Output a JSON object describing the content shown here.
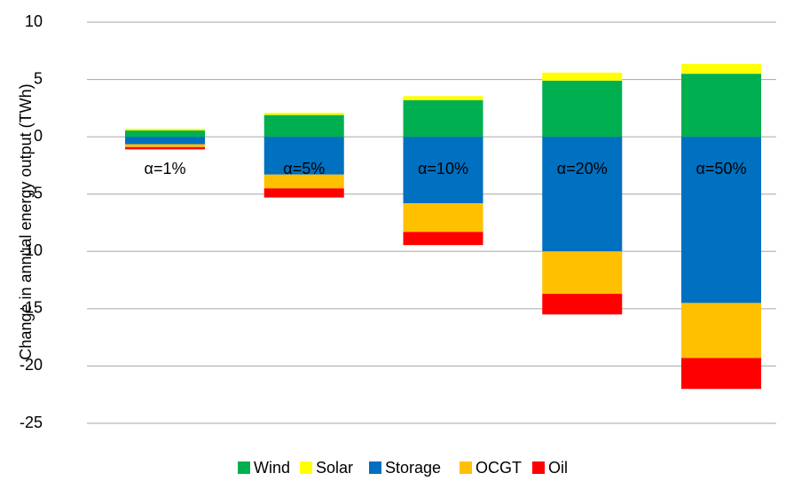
{
  "chart_data": {
    "type": "stacked_bar",
    "ylabel": "Change in annual energy output (TWh)",
    "categories": [
      "α=1%",
      "α=5%",
      "α=10%",
      "α=20%",
      "α=50%"
    ],
    "series": [
      {
        "name": "Wind",
        "color": "#00b050",
        "values": [
          0.55,
          1.9,
          3.2,
          4.9,
          5.5
        ]
      },
      {
        "name": "Solar",
        "color": "#ffff00",
        "values": [
          0.15,
          0.2,
          0.35,
          0.7,
          0.85
        ]
      },
      {
        "name": "Storage",
        "color": "#0070c0",
        "values": [
          -0.65,
          -3.3,
          -5.8,
          -10.0,
          -14.5
        ]
      },
      {
        "name": "OCGT",
        "color": "#ffc000",
        "values": [
          -0.25,
          -1.2,
          -2.5,
          -3.7,
          -4.8
        ]
      },
      {
        "name": "Oil",
        "color": "#ff0000",
        "values": [
          -0.2,
          -0.8,
          -1.15,
          -1.8,
          -2.7
        ]
      }
    ],
    "ylim": [
      -25,
      10
    ],
    "yticks": [
      -25,
      -20,
      -15,
      -10,
      -5,
      0,
      5,
      10
    ],
    "grid": true,
    "legend": "bottom"
  }
}
